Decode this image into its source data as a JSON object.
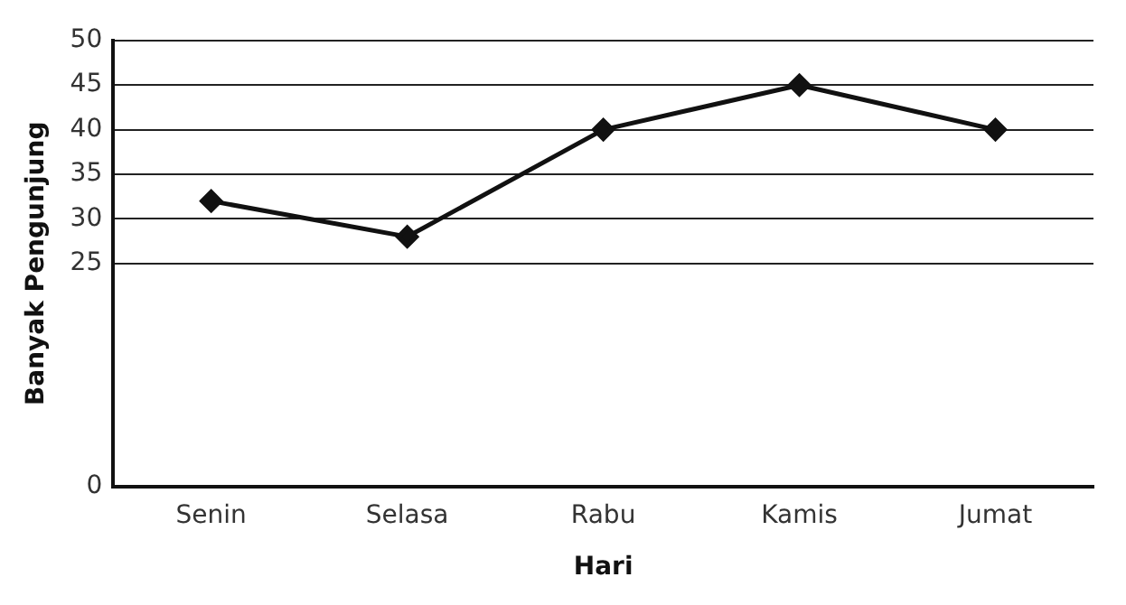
{
  "chart_data": {
    "type": "line",
    "xlabel": "Hari",
    "ylabel": "Banyak Pengunjung",
    "categories": [
      "Senin",
      "Selasa",
      "Rabu",
      "Kamis",
      "Jumat"
    ],
    "series": [
      {
        "color": "#111111",
        "values": [
          32,
          28,
          40,
          45,
          40
        ]
      }
    ],
    "ylim": [
      0,
      50
    ],
    "yticks": [
      0,
      25,
      30,
      35,
      40,
      45,
      50
    ],
    "grid": "y",
    "marker": "diamond",
    "line_style": "solid",
    "legend": false
  }
}
